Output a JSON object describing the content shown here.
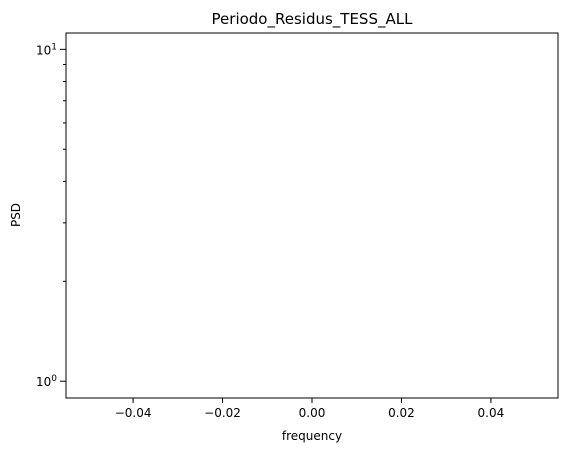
{
  "chart_data": {
    "type": "line",
    "title": "Periodo_Residus_TESS_ALL",
    "xlabel": "frequency",
    "ylabel": "PSD",
    "xlim": [
      -0.055,
      0.055
    ],
    "ylim": [
      0.89,
      11.2
    ],
    "yscale": "log",
    "grid": false,
    "x_ticks": [
      -0.04,
      -0.02,
      0.0,
      0.02,
      0.04
    ],
    "x_tick_labels": [
      "−0.04",
      "−0.02",
      "0.00",
      "0.02",
      "0.04"
    ],
    "y_major_ticks": [
      {
        "value": 1,
        "base": "10",
        "exp": "0"
      },
      {
        "value": 10,
        "base": "10",
        "exp": "1"
      }
    ],
    "y_minor_ticks": [
      2,
      3,
      4,
      5,
      6,
      7,
      8,
      9
    ],
    "series": [
      {
        "x": [],
        "y": []
      }
    ]
  }
}
